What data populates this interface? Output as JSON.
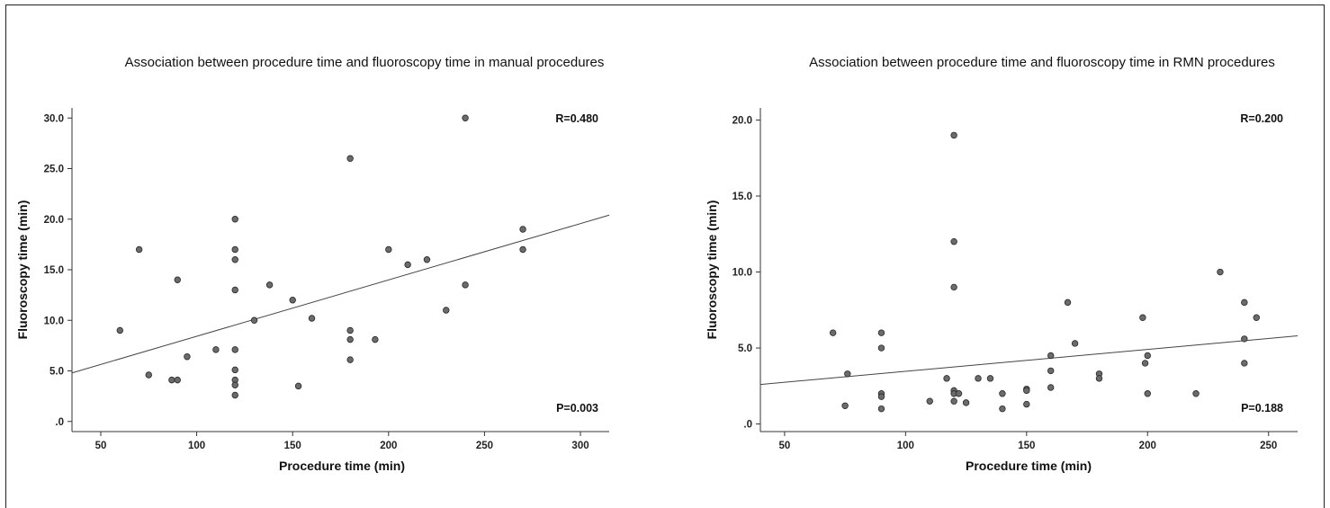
{
  "chart_data": [
    {
      "type": "scatter",
      "title": "Association between procedure time and fluoroscopy time in manual procedures",
      "xlabel": "Procedure time (min)",
      "ylabel": "Fluoroscopy time (min)",
      "xlim": [
        35,
        315
      ],
      "ylim": [
        -1,
        31
      ],
      "xticks": [
        50,
        100,
        150,
        200,
        250,
        300
      ],
      "xtick_labels": [
        "50",
        "100",
        "150",
        "200",
        "250",
        "300"
      ],
      "yticks": [
        0,
        5,
        10,
        15,
        20,
        25,
        30
      ],
      "ytick_labels": [
        ".0",
        "5.0",
        "10.0",
        "15.0",
        "20.0",
        "25.0",
        "30.0"
      ],
      "grid": false,
      "fit_line": {
        "x": [
          35,
          315
        ],
        "y": [
          4.8,
          20.4
        ]
      },
      "annotations": {
        "r": "R=0.480",
        "p": "P=0.003"
      },
      "x": [
        60,
        70,
        75,
        87,
        90,
        90,
        95,
        110,
        120,
        120,
        120,
        120,
        120,
        120,
        120,
        120,
        120,
        130,
        138,
        150,
        153,
        160,
        180,
        180,
        180,
        180,
        193,
        200,
        210,
        220,
        230,
        240,
        240,
        270,
        270
      ],
      "y": [
        9,
        17,
        4.6,
        4.1,
        4.1,
        14,
        6.4,
        7.1,
        20,
        17,
        16,
        13,
        7.1,
        5.1,
        4.1,
        3.6,
        2.6,
        10,
        13.5,
        12,
        3.5,
        10.2,
        26,
        9,
        8.1,
        6.1,
        8.1,
        17,
        15.5,
        16,
        11,
        30,
        13.5,
        19,
        17
      ]
    },
    {
      "type": "scatter",
      "title": "Association between procedure time and fluoroscopy time in RMN procedures",
      "xlabel": "Procedure time (min)",
      "ylabel": "Fluoroscopy time (min)",
      "xlim": [
        40,
        262
      ],
      "ylim": [
        -0.5,
        20.8
      ],
      "xticks": [
        50,
        100,
        150,
        200,
        250
      ],
      "xtick_labels": [
        "50",
        "100",
        "150",
        "200",
        "250"
      ],
      "yticks": [
        0,
        5,
        10,
        15,
        20
      ],
      "ytick_labels": [
        ".0",
        "5.0",
        "10.0",
        "15.0",
        "20.0"
      ],
      "grid": false,
      "fit_line": {
        "x": [
          40,
          262
        ],
        "y": [
          2.6,
          5.8
        ]
      },
      "annotations": {
        "r": "R=0.200",
        "p": "P=0.188"
      },
      "x": [
        70,
        75,
        76,
        90,
        90,
        90,
        90,
        90,
        110,
        117,
        120,
        120,
        120,
        120,
        120,
        120,
        122,
        125,
        130,
        135,
        140,
        140,
        150,
        150,
        150,
        160,
        160,
        160,
        167,
        170,
        180,
        180,
        198,
        199,
        200,
        200,
        220,
        230,
        240,
        240,
        240,
        245
      ],
      "y": [
        6,
        1.2,
        3.3,
        6,
        5,
        2,
        1.8,
        1,
        1.5,
        3,
        19,
        12,
        9,
        2.2,
        2,
        1.5,
        2,
        1.4,
        3,
        3,
        2,
        1,
        2.3,
        2.2,
        1.3,
        4.5,
        3.5,
        2.4,
        8,
        5.3,
        3.3,
        3,
        7,
        4,
        4.5,
        2,
        2,
        10,
        8,
        5.6,
        4,
        7
      ]
    }
  ]
}
